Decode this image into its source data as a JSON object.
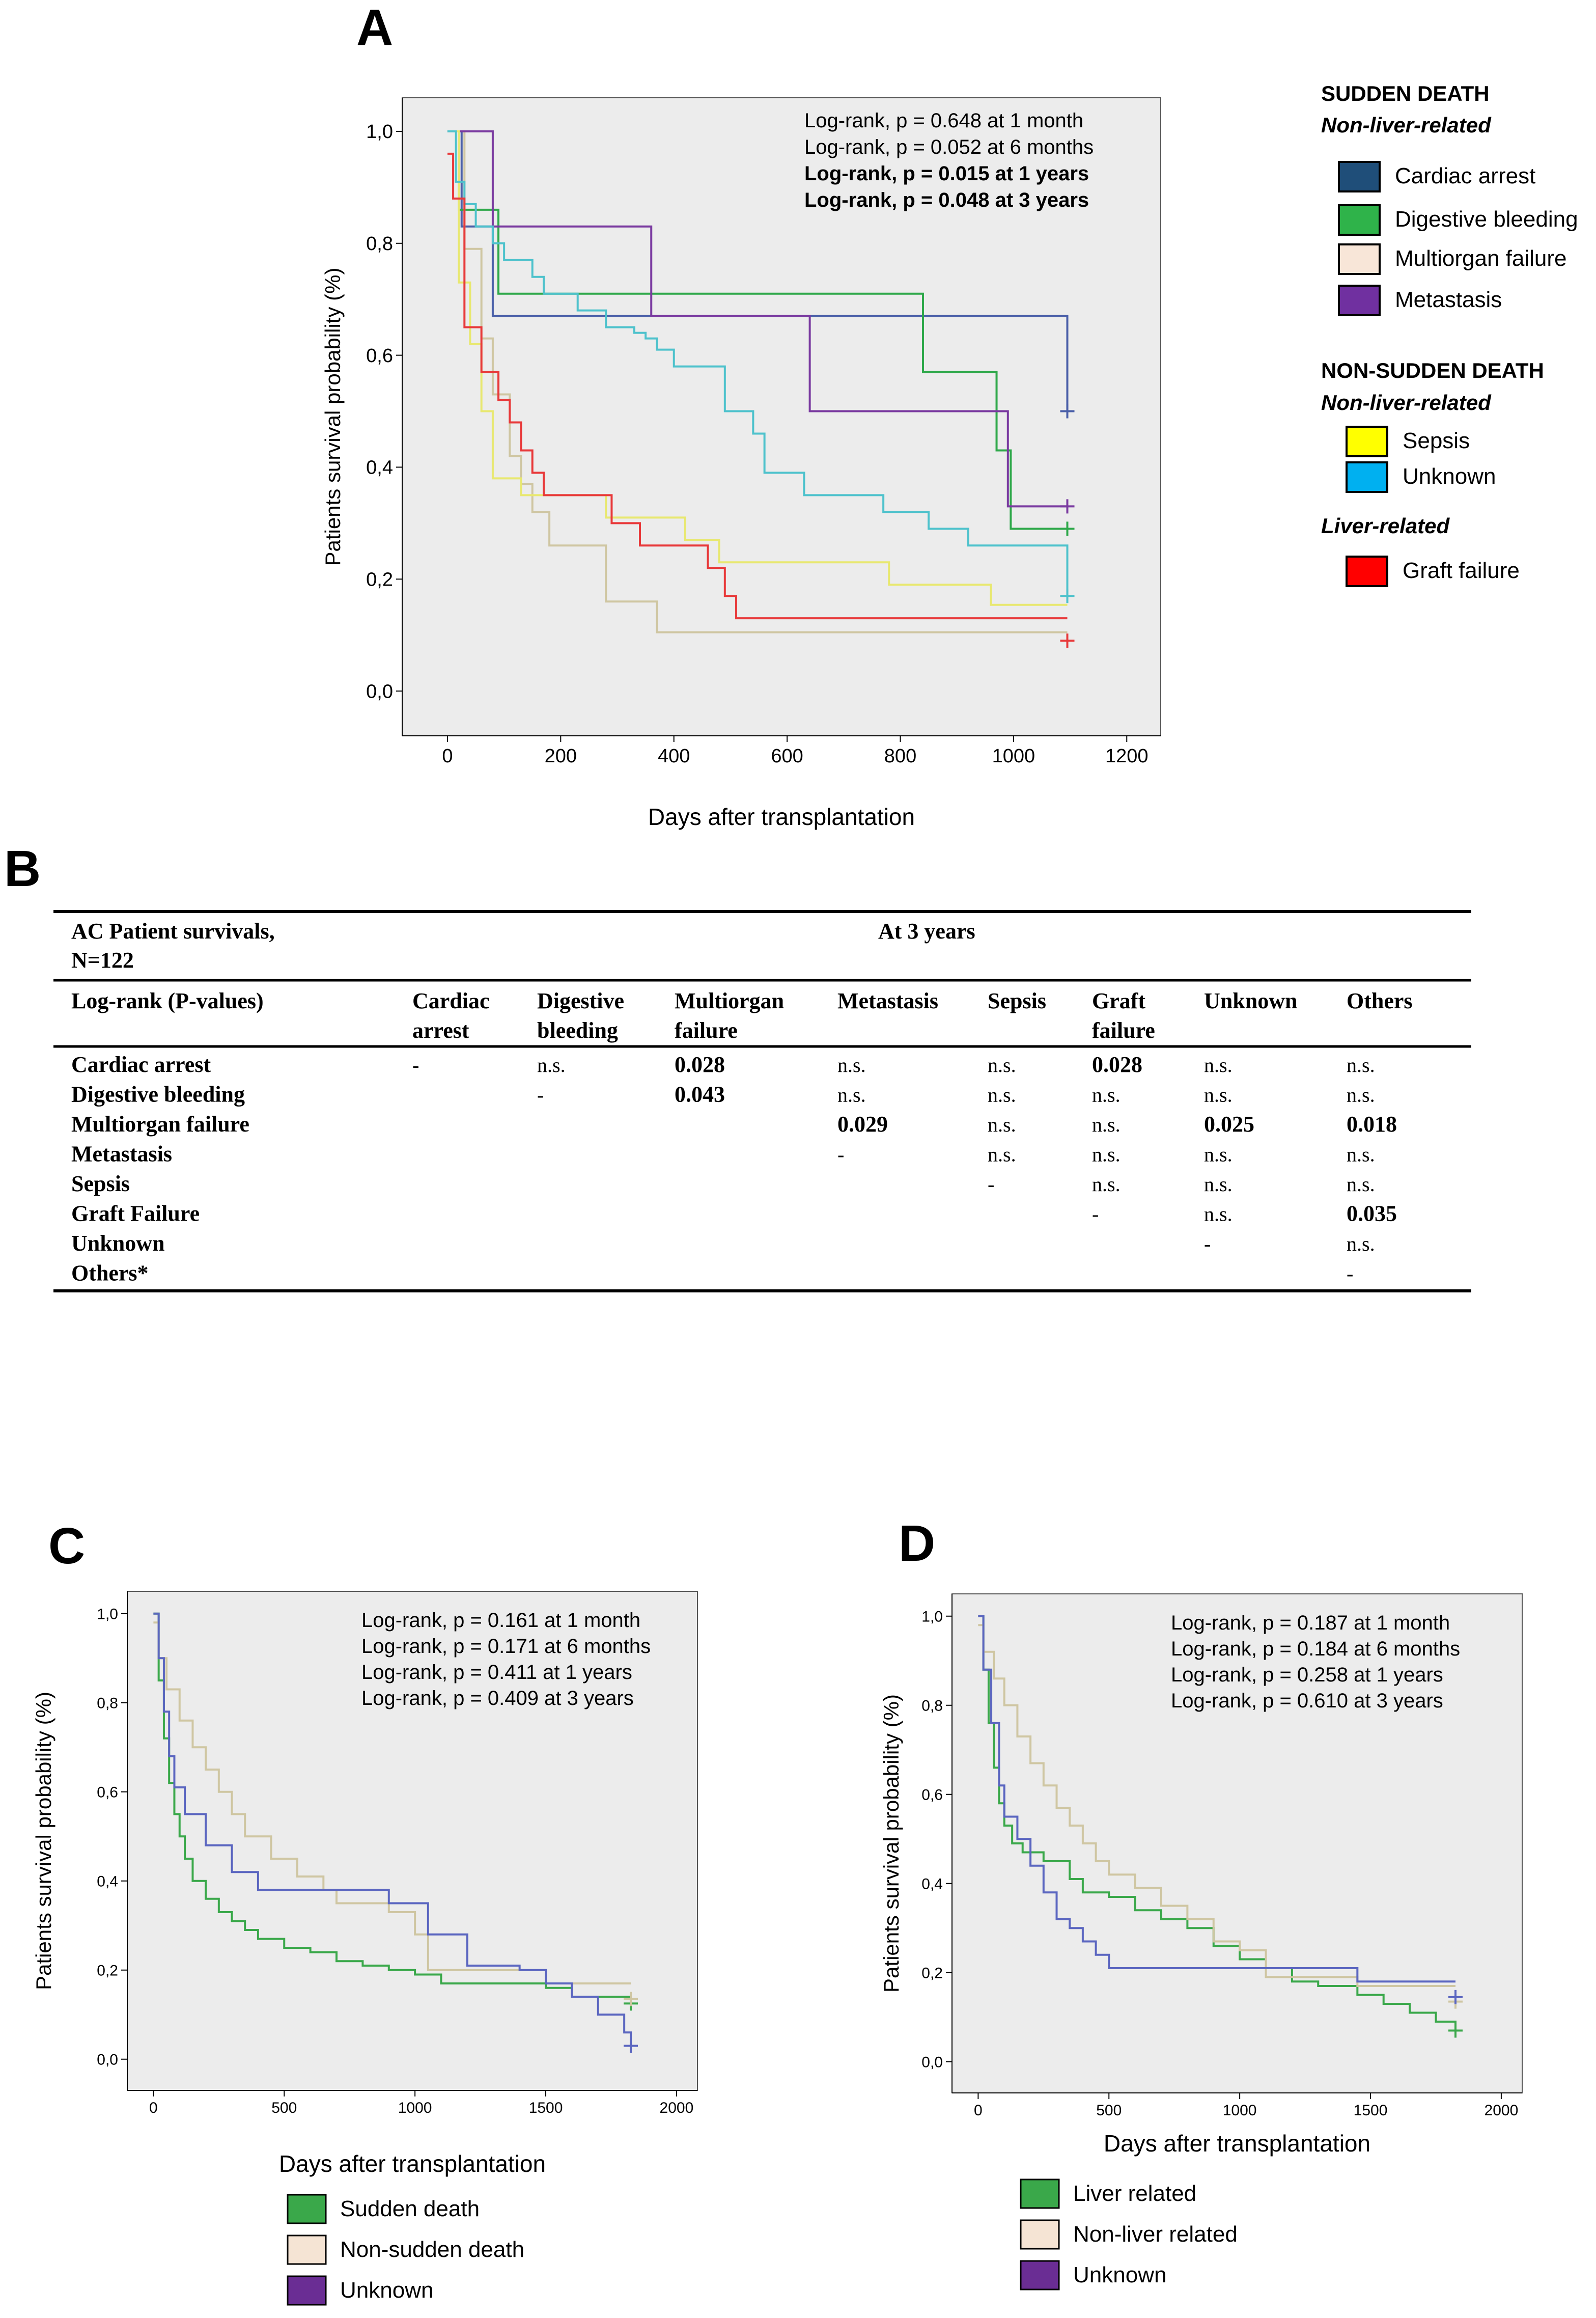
{
  "panels": {
    "A": "A",
    "B": "B",
    "C": "C",
    "D": "D"
  },
  "chart_data": [
    {
      "id": "A",
      "type": "line",
      "title": "",
      "xlabel": "Days after transplantation",
      "ylabel": "Patients survival probability (%)",
      "xlim": [
        -80,
        1260
      ],
      "ylim": [
        -0.08,
        1.06
      ],
      "xticks": [
        0,
        200,
        400,
        600,
        800,
        1000,
        1200
      ],
      "xtick_labels": [
        "0",
        "200",
        "400",
        "600",
        "800",
        "1000",
        "1200"
      ],
      "yticks": [
        0,
        0.2,
        0.4,
        0.6,
        0.8,
        1.0
      ],
      "ytick_labels": [
        "0,0",
        "0,2",
        "0,4",
        "0,6",
        "0,8",
        "1,0"
      ],
      "annotations": [
        {
          "text": "Log-rank, p = 0.648 at 1 month",
          "bold": false
        },
        {
          "text": "Log-rank, p = 0.052 at 6 months",
          "bold": false
        },
        {
          "text": "Log-rank, p = 0.015 at 1 years",
          "bold": true
        },
        {
          "text": "Log-rank, p = 0.048 at 3 years",
          "bold": true
        }
      ],
      "series": [
        {
          "name": "Cardiac arrest",
          "color": "#4a5fa8",
          "x": [
            0,
            25,
            60,
            80,
            370,
            1095
          ],
          "y": [
            1.0,
            0.83,
            0.83,
            0.67,
            0.67,
            0.5
          ],
          "censor": [
            [
              1095,
              0.5
            ]
          ]
        },
        {
          "name": "Digestive bleeding",
          "color": "#2ea84a",
          "x": [
            0,
            20,
            50,
            80,
            90,
            840,
            970,
            995,
            1095
          ],
          "y": [
            1.0,
            0.86,
            0.86,
            0.86,
            0.71,
            0.57,
            0.43,
            0.29,
            0.29
          ],
          "censor": [
            [
              1095,
              0.29
            ]
          ]
        },
        {
          "name": "Multiorgan failure",
          "color": "#cfc6a2",
          "x": [
            0,
            30,
            60,
            80,
            110,
            130,
            150,
            180,
            280,
            370,
            1095
          ],
          "y": [
            1.0,
            0.79,
            0.63,
            0.53,
            0.42,
            0.37,
            0.32,
            0.26,
            0.16,
            0.105,
            0.105
          ],
          "censor": []
        },
        {
          "name": "Metastasis",
          "color": "#7a3aa0",
          "x": [
            0,
            15,
            60,
            80,
            360,
            640,
            960,
            990,
            1095
          ],
          "y": [
            1.0,
            1.0,
            1.0,
            0.83,
            0.67,
            0.5,
            0.5,
            0.33,
            0.33
          ],
          "censor": [
            [
              1095,
              0.33
            ]
          ]
        },
        {
          "name": "Sepsis",
          "color": "#e8e870",
          "x": [
            0,
            20,
            40,
            60,
            80,
            130,
            280,
            420,
            480,
            780,
            960,
            1095
          ],
          "y": [
            1.0,
            0.73,
            0.62,
            0.5,
            0.38,
            0.35,
            0.31,
            0.27,
            0.23,
            0.19,
            0.154,
            0.154
          ],
          "censor": []
        },
        {
          "name": "Unknown",
          "color": "#4ec2cc",
          "x": [
            0,
            15,
            30,
            50,
            80,
            100,
            150,
            170,
            230,
            280,
            330,
            350,
            370,
            400,
            490,
            540,
            560,
            630,
            720,
            770,
            850,
            920,
            970,
            1095
          ],
          "y": [
            1.0,
            0.91,
            0.87,
            0.83,
            0.8,
            0.77,
            0.74,
            0.71,
            0.68,
            0.65,
            0.64,
            0.63,
            0.61,
            0.58,
            0.5,
            0.46,
            0.39,
            0.35,
            0.35,
            0.32,
            0.29,
            0.26,
            0.26,
            0.17
          ],
          "censor": [
            [
              1095,
              0.17
            ]
          ]
        },
        {
          "name": "Graft failure",
          "color": "#e8393a",
          "x": [
            0,
            10,
            30,
            60,
            90,
            110,
            130,
            150,
            170,
            290,
            340,
            460,
            490,
            510,
            1095
          ],
          "y": [
            0.96,
            0.88,
            0.65,
            0.57,
            0.52,
            0.48,
            0.43,
            0.39,
            0.35,
            0.3,
            0.26,
            0.22,
            0.17,
            0.13,
            0.13
          ],
          "censor": [
            [
              1095,
              0.09
            ]
          ]
        }
      ]
    },
    {
      "id": "C",
      "type": "line",
      "title": "",
      "xlabel": "Days after transplantation",
      "ylabel": "Patients survival probability (%)",
      "xlim": [
        -100,
        2080
      ],
      "ylim": [
        -0.07,
        1.05
      ],
      "xticks": [
        0,
        500,
        1000,
        1500,
        2000
      ],
      "xtick_labels": [
        "0",
        "500",
        "1000",
        "1500",
        "2000"
      ],
      "yticks": [
        0,
        0.2,
        0.4,
        0.6,
        0.8,
        1.0
      ],
      "ytick_labels": [
        "0,0",
        "0,2",
        "0,4",
        "0,6",
        "0,8",
        "1,0"
      ],
      "annotations": [
        {
          "text": "Log-rank, p = 0.161 at 1 month",
          "bold": false
        },
        {
          "text": "Log-rank, p = 0.171 at 6 months",
          "bold": false
        },
        {
          "text": "Log-rank, p = 0.411 at 1 years",
          "bold": false
        },
        {
          "text": "Log-rank, p = 0.409 at 3 years",
          "bold": false
        }
      ],
      "series": [
        {
          "name": "Sudden death",
          "color": "#3aa84a",
          "x": [
            0,
            20,
            40,
            60,
            80,
            100,
            120,
            150,
            200,
            250,
            300,
            350,
            400,
            500,
            600,
            700,
            800,
            900,
            1000,
            1100,
            1300,
            1500,
            1600,
            1825
          ],
          "y": [
            1.0,
            0.85,
            0.72,
            0.62,
            0.55,
            0.5,
            0.45,
            0.4,
            0.36,
            0.33,
            0.31,
            0.29,
            0.27,
            0.25,
            0.24,
            0.22,
            0.21,
            0.2,
            0.19,
            0.17,
            0.17,
            0.16,
            0.14,
            0.14
          ],
          "censor": [
            [
              1825,
              0.125
            ]
          ]
        },
        {
          "name": "Non-sudden death",
          "color": "#cfc6a2",
          "x": [
            0,
            20,
            50,
            100,
            150,
            200,
            250,
            300,
            350,
            450,
            550,
            650,
            700,
            800,
            900,
            1000,
            1050,
            1300,
            1500,
            1825
          ],
          "y": [
            0.98,
            0.9,
            0.83,
            0.76,
            0.7,
            0.65,
            0.6,
            0.55,
            0.5,
            0.45,
            0.41,
            0.38,
            0.35,
            0.35,
            0.33,
            0.28,
            0.2,
            0.2,
            0.17,
            0.17
          ],
          "censor": [
            [
              1825,
              0.135
            ]
          ]
        },
        {
          "name": "Unknown",
          "color": "#5b66c0",
          "x": [
            0,
            20,
            40,
            60,
            80,
            120,
            200,
            300,
            400,
            500,
            800,
            900,
            1000,
            1050,
            1200,
            1300,
            1400,
            1500,
            1600,
            1700,
            1800,
            1825
          ],
          "y": [
            1.0,
            0.9,
            0.78,
            0.68,
            0.61,
            0.55,
            0.48,
            0.42,
            0.38,
            0.38,
            0.38,
            0.35,
            0.35,
            0.28,
            0.21,
            0.21,
            0.2,
            0.17,
            0.14,
            0.1,
            0.06,
            0.03
          ],
          "censor": [
            [
              1825,
              0.03
            ]
          ]
        }
      ],
      "legend": [
        "Sudden death",
        "Non-sudden death",
        "Unknown"
      ],
      "legend_colors": [
        "#3aa84a",
        "#f5e4d4",
        "#6a2d94"
      ]
    },
    {
      "id": "D",
      "type": "line",
      "title": "",
      "xlabel": "Days after transplantation",
      "ylabel": "Patients survival probability (%)",
      "xlim": [
        -100,
        2080
      ],
      "ylim": [
        -0.07,
        1.05
      ],
      "xticks": [
        0,
        500,
        1000,
        1500,
        2000
      ],
      "xtick_labels": [
        "0",
        "500",
        "1000",
        "1500",
        "2000"
      ],
      "yticks": [
        0,
        0.2,
        0.4,
        0.6,
        0.8,
        1.0
      ],
      "ytick_labels": [
        "0,0",
        "0,2",
        "0,4",
        "0,6",
        "0,8",
        "1,0"
      ],
      "annotations": [
        {
          "text": "Log-rank, p = 0.187 at 1 month",
          "bold": false
        },
        {
          "text": "Log-rank, p = 0.184 at 6 months",
          "bold": false
        },
        {
          "text": "Log-rank, p = 0.258 at 1 years",
          "bold": false
        },
        {
          "text": "Log-rank, p = 0.610 at 3 years",
          "bold": false
        }
      ],
      "series": [
        {
          "name": "Liver related",
          "color": "#3aa84a",
          "x": [
            0,
            20,
            40,
            60,
            80,
            100,
            130,
            170,
            250,
            350,
            400,
            500,
            600,
            700,
            800,
            900,
            1000,
            1100,
            1200,
            1300,
            1450,
            1550,
            1650,
            1750,
            1825
          ],
          "y": [
            1.0,
            0.88,
            0.76,
            0.66,
            0.58,
            0.53,
            0.49,
            0.47,
            0.45,
            0.41,
            0.38,
            0.37,
            0.34,
            0.32,
            0.3,
            0.26,
            0.23,
            0.21,
            0.18,
            0.17,
            0.15,
            0.13,
            0.11,
            0.09,
            0.07
          ],
          "censor": [
            [
              1825,
              0.07
            ]
          ]
        },
        {
          "name": "Non-liver related",
          "color": "#cfc6a2",
          "x": [
            0,
            20,
            60,
            100,
            150,
            200,
            250,
            300,
            350,
            400,
            450,
            500,
            600,
            700,
            800,
            900,
            1000,
            1100,
            1450,
            1825
          ],
          "y": [
            0.98,
            0.92,
            0.86,
            0.8,
            0.73,
            0.67,
            0.62,
            0.57,
            0.53,
            0.49,
            0.45,
            0.42,
            0.39,
            0.35,
            0.32,
            0.27,
            0.25,
            0.19,
            0.17,
            0.17
          ],
          "censor": [
            [
              1825,
              0.135
            ]
          ]
        },
        {
          "name": "Unknown",
          "color": "#5b66c0",
          "x": [
            0,
            20,
            50,
            80,
            100,
            150,
            200,
            250,
            300,
            350,
            400,
            450,
            500,
            1450,
            1825
          ],
          "y": [
            1.0,
            0.88,
            0.76,
            0.62,
            0.55,
            0.5,
            0.44,
            0.38,
            0.32,
            0.3,
            0.27,
            0.24,
            0.21,
            0.18,
            0.18
          ],
          "censor": [
            [
              1825,
              0.145
            ]
          ]
        }
      ],
      "legend": [
        "Liver related",
        "Non-liver related",
        "Unknown"
      ],
      "legend_colors": [
        "#3aa84a",
        "#f5e4d4",
        "#6a2d94"
      ]
    }
  ],
  "legendA": {
    "groups": [
      {
        "heading": "SUDDEN DEATH",
        "subheading": "Non-liver-related",
        "items": [
          {
            "label": "Cardiac arrest",
            "color": "#1f4e79"
          },
          {
            "label": "Digestive bleeding",
            "color": "#2fb34a"
          },
          {
            "label": "Multiorgan failure",
            "color": "#f8e6d8"
          },
          {
            "label": "Metastasis",
            "color": "#7030a0"
          }
        ]
      },
      {
        "heading": "NON-SUDDEN DEATH",
        "subheading": "Non-liver-related",
        "items": [
          {
            "label": "Sepsis",
            "color": "#ffff00"
          },
          {
            "label": "Unknown",
            "color": "#00b0f0"
          }
        ]
      },
      {
        "heading": "",
        "subheading": "Liver-related",
        "items": [
          {
            "label": "Graft failure",
            "color": "#ff0000"
          }
        ]
      }
    ]
  },
  "tableB": {
    "title_line1": "AC Patient survivals,",
    "title_line2": "N=122",
    "span_header": "At 3 years",
    "row_header": "Log-rank (P-values)",
    "columns": [
      [
        "Cardiac",
        "arrest"
      ],
      [
        "Digestive",
        "bleeding"
      ],
      [
        "Multiorgan",
        "failure"
      ],
      [
        "Metastasis",
        ""
      ],
      [
        "Sepsis",
        ""
      ],
      [
        "Graft",
        "failure"
      ],
      [
        "Unknown",
        ""
      ],
      [
        "Others",
        ""
      ]
    ],
    "rows": [
      {
        "label": "Cardiac arrest",
        "cells": [
          "-",
          "n.s.",
          "0.028",
          "n.s.",
          "n.s.",
          "0.028",
          "n.s.",
          "n.s."
        ]
      },
      {
        "label": "Digestive bleeding",
        "cells": [
          "",
          "-",
          "0.043",
          "n.s.",
          "n.s.",
          "n.s.",
          "n.s.",
          "n.s."
        ]
      },
      {
        "label": "Multiorgan failure",
        "cells": [
          "",
          "",
          "",
          "0.029",
          "n.s.",
          "n.s.",
          "0.025",
          "0.018"
        ]
      },
      {
        "label": "Metastasis",
        "cells": [
          "",
          "",
          "",
          "-",
          "n.s.",
          "n.s.",
          "n.s.",
          "n.s."
        ]
      },
      {
        "label": "Sepsis",
        "cells": [
          "",
          "",
          "",
          "",
          "-",
          "n.s.",
          "n.s.",
          "n.s."
        ]
      },
      {
        "label": "Graft Failure",
        "cells": [
          "",
          "",
          "",
          "",
          "",
          "-",
          "n.s.",
          "0.035"
        ]
      },
      {
        "label": "Unknown",
        "cells": [
          "",
          "",
          "",
          "",
          "",
          "",
          "-",
          "n.s."
        ]
      },
      {
        "label": "Others*",
        "cells": [
          "",
          "",
          "",
          "",
          "",
          "",
          "",
          "-"
        ]
      }
    ]
  }
}
